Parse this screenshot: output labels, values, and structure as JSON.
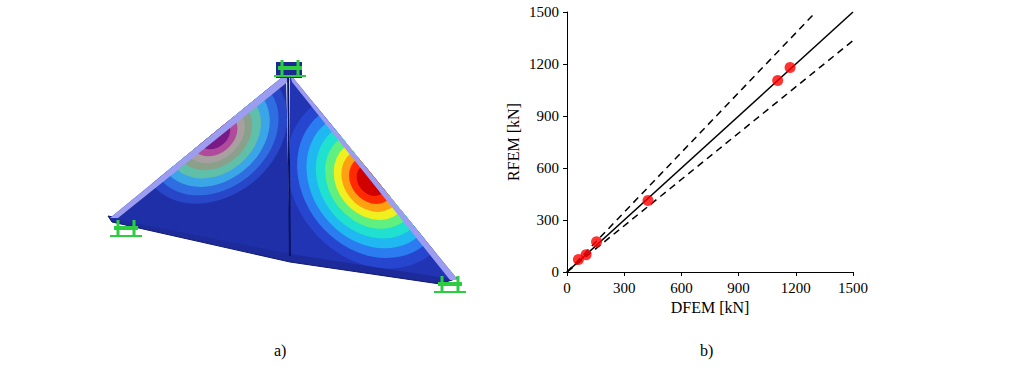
{
  "panel_labels": [
    "a)",
    "b)"
  ],
  "chart_data": {
    "type": "scatter",
    "x_label": "DFEM [kN]",
    "y_label": "RFEM [kN]",
    "xlim": [
      0,
      1500
    ],
    "ylim": [
      0,
      1500
    ],
    "xticks": [
      0,
      300,
      600,
      900,
      1200,
      1500
    ],
    "yticks": [
      0,
      300,
      600,
      900,
      1200,
      1500
    ],
    "grid": false,
    "series": [
      {
        "type": "scatter",
        "marker": "circle",
        "color": "#ff0000",
        "x": [
          60,
          100,
          155,
          425,
          1105,
          1170
        ],
        "values": [
          72,
          100,
          175,
          412,
          1105,
          1180
        ]
      },
      {
        "type": "line",
        "line_style": "solid",
        "color": "#000000",
        "x": [
          0,
          1500
        ],
        "values": [
          0,
          1500
        ]
      },
      {
        "type": "line",
        "line_style": "dashed",
        "color": "#000000",
        "x": [
          0,
          1305
        ],
        "values": [
          0,
          1500
        ]
      },
      {
        "type": "line",
        "line_style": "dashed",
        "color": "#000000",
        "x": [
          0,
          1500
        ],
        "values": [
          0,
          1335
        ]
      }
    ]
  }
}
